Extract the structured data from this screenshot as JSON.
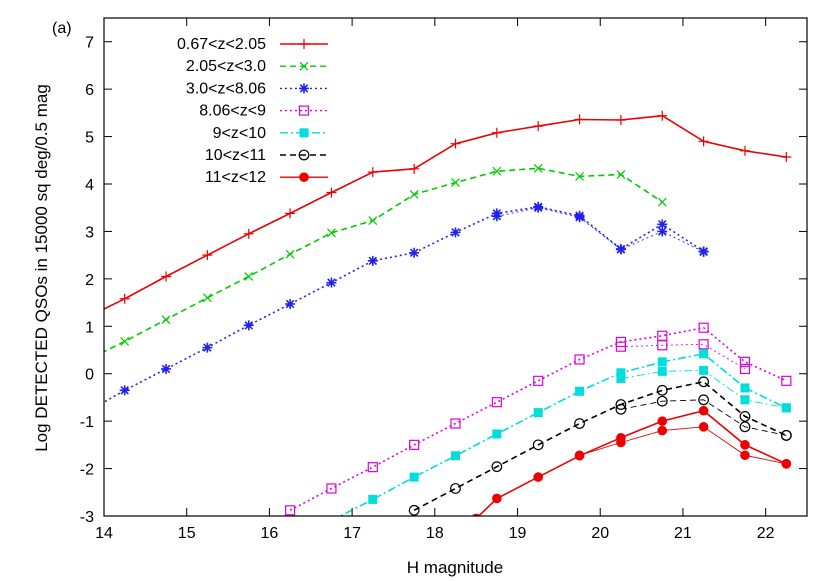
{
  "chart_data": {
    "type": "line",
    "panel_label": "(a)",
    "xlabel": "H magnitude",
    "ylabel": "Log DETECTED QSOs in 15000 sq deg/0.5 mag",
    "xlim": [
      14,
      22.5
    ],
    "ylim": [
      -3,
      7.5
    ],
    "xticks": [
      14,
      15,
      16,
      17,
      18,
      19,
      20,
      21,
      22
    ],
    "yticks": [
      -3,
      -2,
      -1,
      0,
      1,
      2,
      3,
      4,
      5,
      6,
      7
    ],
    "legend_position": "top-left",
    "series": [
      {
        "name": "0.67<z<2.05",
        "color": "#ee0000",
        "marker": "plus",
        "dash": "solid",
        "lines": [
          [
            [
              13.75,
              1.15
            ],
            [
              14.25,
              1.58
            ],
            [
              14.75,
              2.05
            ],
            [
              15.25,
              2.5
            ],
            [
              15.75,
              2.95
            ],
            [
              16.25,
              3.38
            ],
            [
              16.75,
              3.82
            ],
            [
              17.25,
              4.25
            ],
            [
              17.75,
              4.32
            ],
            [
              18.25,
              4.85
            ],
            [
              18.75,
              5.08
            ],
            [
              19.25,
              5.22
            ],
            [
              19.75,
              5.36
            ],
            [
              20.25,
              5.35
            ],
            [
              20.75,
              5.44
            ],
            [
              21.25,
              4.9
            ],
            [
              21.75,
              4.7
            ],
            [
              22.25,
              4.57
            ]
          ]
        ]
      },
      {
        "name": "2.05<z<3.0",
        "color": "#00cc00",
        "marker": "x",
        "dash": "dashed",
        "lines": [
          [
            [
              13.75,
              0.25
            ],
            [
              14.25,
              0.68
            ],
            [
              14.75,
              1.14
            ],
            [
              15.25,
              1.6
            ],
            [
              15.75,
              2.05
            ],
            [
              16.25,
              2.52
            ],
            [
              16.75,
              2.97
            ],
            [
              17.25,
              3.23
            ],
            [
              17.75,
              3.78
            ],
            [
              18.25,
              4.03
            ],
            [
              18.75,
              4.27
            ],
            [
              19.25,
              4.33
            ],
            [
              19.75,
              4.16
            ],
            [
              20.25,
              4.2
            ],
            [
              20.75,
              3.62
            ]
          ]
        ]
      },
      {
        "name": "3.0<z<8.06",
        "color": "#2222ee",
        "marker": "star",
        "dash": "dotted",
        "lines": [
          [
            [
              13.75,
              -0.85
            ],
            [
              14.25,
              -0.35
            ],
            [
              14.75,
              0.1
            ],
            [
              15.25,
              0.55
            ],
            [
              15.75,
              1.02
            ],
            [
              16.25,
              1.47
            ],
            [
              16.75,
              1.92
            ],
            [
              17.25,
              2.38
            ],
            [
              17.75,
              2.55
            ],
            [
              18.25,
              2.98
            ],
            [
              18.75,
              3.38
            ],
            [
              19.25,
              3.52
            ],
            [
              19.75,
              3.33
            ],
            [
              20.25,
              2.63
            ],
            [
              20.75,
              3.15
            ],
            [
              21.25,
              2.58
            ]
          ],
          [
            [
              18.75,
              3.32
            ],
            [
              19.25,
              3.5
            ],
            [
              19.75,
              3.3
            ],
            [
              20.25,
              2.62
            ],
            [
              20.75,
              3.0
            ],
            [
              21.25,
              2.57
            ]
          ]
        ]
      },
      {
        "name": "8.06<z<9",
        "color": "#dd00dd",
        "marker": "open-square",
        "dash": "dotted",
        "lines": [
          [
            [
              16.25,
              -2.88
            ],
            [
              16.75,
              -2.42
            ],
            [
              17.25,
              -1.97
            ],
            [
              17.75,
              -1.5
            ],
            [
              18.25,
              -1.05
            ],
            [
              18.75,
              -0.6
            ],
            [
              19.25,
              -0.15
            ],
            [
              19.75,
              0.3
            ],
            [
              20.25,
              0.67
            ],
            [
              20.75,
              0.8
            ],
            [
              21.25,
              0.97
            ],
            [
              21.75,
              0.25
            ],
            [
              22.25,
              -0.15
            ]
          ],
          [
            [
              20.25,
              0.57
            ],
            [
              20.75,
              0.6
            ],
            [
              21.25,
              0.62
            ],
            [
              21.75,
              0.1
            ]
          ]
        ]
      },
      {
        "name": "9<z<10",
        "color": "#00dddd",
        "marker": "filled-square",
        "dash": "dashdot",
        "lines": [
          [
            [
              16.75,
              -3.1
            ],
            [
              17.25,
              -2.65
            ],
            [
              17.75,
              -2.18
            ],
            [
              18.25,
              -1.73
            ],
            [
              18.75,
              -1.27
            ],
            [
              19.25,
              -0.82
            ],
            [
              19.75,
              -0.37
            ],
            [
              20.25,
              0.02
            ],
            [
              20.75,
              0.25
            ],
            [
              21.25,
              0.42
            ],
            [
              21.75,
              -0.3
            ],
            [
              22.25,
              -0.72
            ]
          ],
          [
            [
              20.25,
              -0.1
            ],
            [
              20.75,
              0.05
            ],
            [
              21.25,
              0.07
            ],
            [
              21.75,
              -0.55
            ],
            [
              22.25,
              -0.72
            ]
          ]
        ]
      },
      {
        "name": "10<z<11",
        "color": "#000000",
        "marker": "open-circle",
        "dash": "dashed",
        "lines": [
          [
            [
              17.75,
              -2.88
            ],
            [
              18.25,
              -2.42
            ],
            [
              18.75,
              -1.96
            ],
            [
              19.25,
              -1.5
            ],
            [
              19.75,
              -1.05
            ],
            [
              20.25,
              -0.65
            ],
            [
              20.75,
              -0.35
            ],
            [
              21.25,
              -0.17
            ],
            [
              21.75,
              -0.9
            ],
            [
              22.25,
              -1.3
            ]
          ],
          [
            [
              20.25,
              -0.75
            ],
            [
              20.75,
              -0.58
            ],
            [
              21.25,
              -0.55
            ],
            [
              21.75,
              -1.12
            ],
            [
              22.25,
              -1.3
            ]
          ]
        ]
      },
      {
        "name": "11<z<12",
        "color": "#ee0000",
        "marker": "filled-circle",
        "dash": "solid",
        "lines": [
          [
            [
              18.5,
              -3.05
            ],
            [
              18.75,
              -2.63
            ],
            [
              19.25,
              -2.18
            ],
            [
              19.75,
              -1.73
            ],
            [
              20.25,
              -1.35
            ],
            [
              20.75,
              -1.0
            ],
            [
              21.25,
              -0.78
            ],
            [
              21.75,
              -1.5
            ],
            [
              22.25,
              -1.9
            ]
          ],
          [
            [
              19.75,
              -1.72
            ],
            [
              20.25,
              -1.45
            ],
            [
              20.75,
              -1.2
            ],
            [
              21.25,
              -1.12
            ],
            [
              21.75,
              -1.72
            ],
            [
              22.25,
              -1.9
            ]
          ]
        ]
      }
    ]
  }
}
